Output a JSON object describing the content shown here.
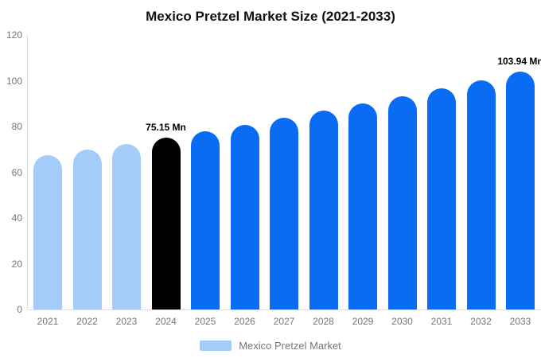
{
  "chart_data": {
    "type": "bar",
    "title": "Mexico Pretzel Market Size (2021-2033)",
    "categories": [
      "2021",
      "2022",
      "2023",
      "2024",
      "2025",
      "2026",
      "2027",
      "2028",
      "2029",
      "2030",
      "2031",
      "2032",
      "2033"
    ],
    "values": [
      67.44,
      69.92,
      72.49,
      75.15,
      77.91,
      80.77,
      83.74,
      86.81,
      90.0,
      93.3,
      96.72,
      100.27,
      103.94
    ],
    "unit": "Mn",
    "bar_colors": [
      "#A4CCF9",
      "#A4CCF9",
      "#A4CCF9",
      "#000000",
      "#0A6CF5",
      "#0A6CF5",
      "#0A6CF5",
      "#0A6CF5",
      "#0A6CF5",
      "#0A6CF5",
      "#0A6CF5",
      "#0A6CF5",
      "#0A6CF5"
    ],
    "data_labels": [
      {
        "category": "2024",
        "text": "75.15 Mn"
      },
      {
        "category": "2033",
        "text": "103.94 Mn"
      }
    ],
    "xlabel": "",
    "ylabel": "",
    "ylim": [
      0,
      120
    ],
    "yticks": [
      0,
      20,
      40,
      60,
      80,
      100,
      120
    ],
    "grid": false,
    "legend": {
      "position": "bottom",
      "label": "Mexico Pretzel Market",
      "swatch_color": "#A4CCF9"
    },
    "colors": {
      "historical_bar": "#A4CCF9",
      "base_year_bar": "#000000",
      "forecast_bar": "#0A6CF5",
      "axis_line": "#DDDDDD",
      "tick_text": "#757575",
      "title_text": "#111111",
      "data_label_text": "#000000"
    }
  }
}
